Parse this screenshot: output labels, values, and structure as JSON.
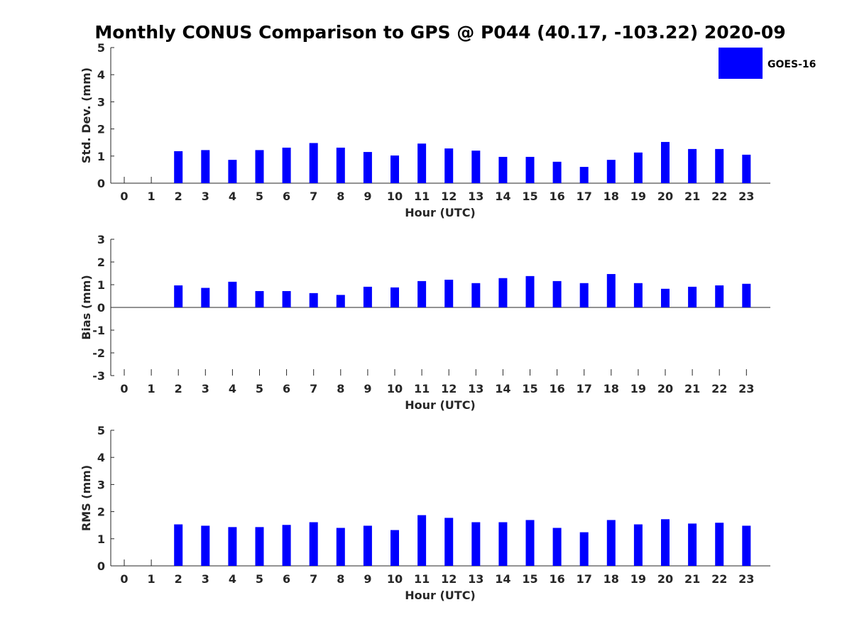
{
  "chart_data": {
    "type": "bar",
    "title": "Monthly CONUS Comparison to GPS @ P044 (40.17, -103.22) 2020-09",
    "legend": {
      "placement": "top-right",
      "entries": [
        "GOES-16"
      ]
    },
    "colors": {
      "bar": "#0000ff",
      "axis": "#262626"
    },
    "categories": [
      "0",
      "1",
      "2",
      "3",
      "4",
      "5",
      "6",
      "7",
      "8",
      "9",
      "10",
      "11",
      "12",
      "13",
      "14",
      "15",
      "16",
      "17",
      "18",
      "19",
      "20",
      "21",
      "22",
      "23"
    ],
    "panels": [
      {
        "xlabel": "Hour (UTC)",
        "ylabel": "Std. Dev. (mm)",
        "ylim": [
          0,
          5
        ],
        "yticks": [
          0,
          1,
          2,
          3,
          4,
          5
        ],
        "series": [
          {
            "name": "GOES-16",
            "values": [
              null,
              null,
              1.18,
              1.22,
              0.86,
              1.22,
              1.31,
              1.48,
              1.31,
              1.15,
              1.02,
              1.46,
              1.28,
              1.2,
              0.97,
              0.97,
              0.79,
              0.6,
              0.86,
              1.13,
              1.52,
              1.26,
              1.26,
              1.05
            ]
          }
        ]
      },
      {
        "xlabel": "Hour (UTC)",
        "ylabel": "Bias (mm)",
        "ylim": [
          -3,
          3
        ],
        "yticks": [
          -3,
          -2,
          -1,
          0,
          1,
          2,
          3
        ],
        "series": [
          {
            "name": "GOES-16",
            "values": [
              null,
              null,
              0.97,
              0.86,
              1.13,
              0.72,
              0.72,
              0.63,
              0.55,
              0.91,
              0.88,
              1.16,
              1.22,
              1.07,
              1.29,
              1.38,
              1.16,
              1.07,
              1.47,
              1.07,
              0.82,
              0.91,
              0.97,
              1.04
            ]
          }
        ]
      },
      {
        "xlabel": "Hour (UTC)",
        "ylabel": "RMS (mm)",
        "ylim": [
          0,
          5
        ],
        "yticks": [
          0,
          1,
          2,
          3,
          4,
          5
        ],
        "series": [
          {
            "name": "GOES-16",
            "values": [
              null,
              null,
              1.53,
              1.48,
              1.43,
              1.43,
              1.51,
              1.61,
              1.4,
              1.48,
              1.32,
              1.87,
              1.77,
              1.61,
              1.61,
              1.69,
              1.4,
              1.24,
              1.69,
              1.53,
              1.72,
              1.56,
              1.59,
              1.48
            ]
          }
        ]
      }
    ]
  }
}
